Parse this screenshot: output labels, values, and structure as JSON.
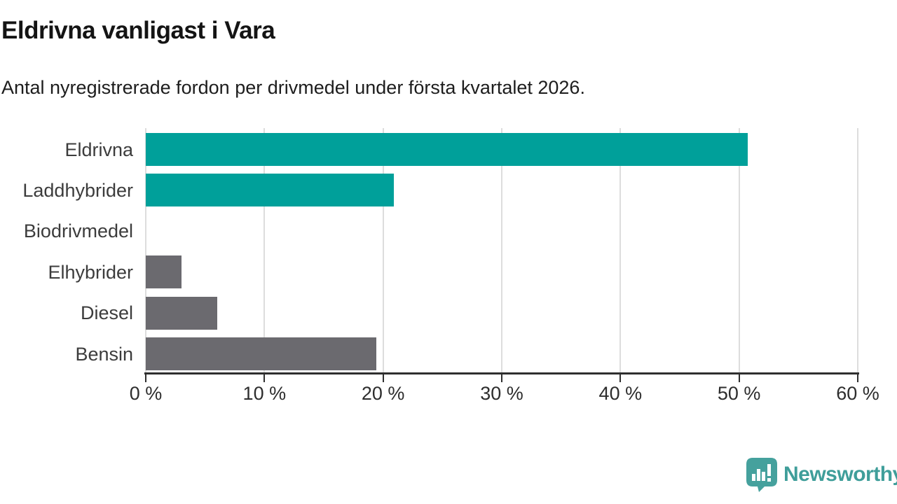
{
  "header": {
    "title": "Eldrivna vanligast i Vara",
    "subtitle": "Antal nyregistrerade fordon per drivmedel under första kvartalet 2026."
  },
  "chart_data": {
    "type": "bar",
    "orientation": "horizontal",
    "title": "Eldrivna vanligast i Vara",
    "subtitle": "Antal nyregistrerade fordon per drivmedel under första kvartalet 2026.",
    "categories": [
      "Eldrivna",
      "Laddhybrider",
      "Biodrivmedel",
      "Elhybrider",
      "Diesel",
      "Bensin"
    ],
    "values": [
      50.7,
      20.9,
      0,
      3,
      6,
      19.4
    ],
    "unit": "%",
    "bar_colors": [
      "#00A09A",
      "#00A09A",
      "#6B6A6F",
      "#6B6A6F",
      "#6B6A6F",
      "#6B6A6F"
    ],
    "xlabel": "",
    "ylabel": "",
    "xlim": [
      0,
      60
    ],
    "x_ticks": [
      0,
      10,
      20,
      30,
      40,
      50,
      60
    ],
    "x_tick_labels": [
      "0 %",
      "10 %",
      "20 %",
      "30 %",
      "40 %",
      "50 %",
      "60 %"
    ],
    "grid": "vertical-gridlines-on",
    "legend": "none"
  },
  "footer": {
    "brand": "Newsworthy",
    "brand_color": "#3F9E9A",
    "logo_icon": "bar-chart-speech-bubble-icon"
  },
  "colors": {
    "accent_teal": "#00A09A",
    "neutral_gray": "#6B6A6F",
    "gridline": "#DDDDDD",
    "axis": "#2F2F2F",
    "background": "#FFFFFF"
  }
}
